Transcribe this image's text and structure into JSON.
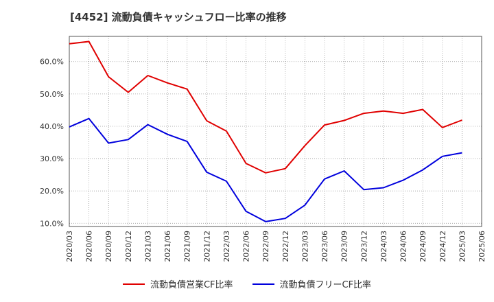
{
  "title": "[4452]  流動負債キャッシュフロー比率の推移",
  "colors": {
    "series1": "#e00000",
    "series2": "#0000dd"
  },
  "chart_data": {
    "type": "line",
    "categories": [
      "2020/03",
      "2020/06",
      "2020/09",
      "2020/12",
      "2021/03",
      "2021/06",
      "2021/09",
      "2021/12",
      "2022/03",
      "2022/06",
      "2022/09",
      "2022/12",
      "2023/03",
      "2023/06",
      "2023/09",
      "2023/12",
      "2024/03",
      "2024/06",
      "2024/09",
      "2024/12",
      "2025/03",
      "2025/06"
    ],
    "yticks": [
      "10.0%",
      "20.0%",
      "30.0%",
      "40.0%",
      "50.0%",
      "60.0%"
    ],
    "ylim": [
      9,
      67.8
    ],
    "grid": true,
    "legend_position": "bottom",
    "series": [
      {
        "name": "流動負債営業CF比率",
        "values": [
          65.5,
          66.2,
          55.3,
          50.5,
          55.7,
          53.4,
          51.5,
          41.7,
          38.5,
          28.5,
          25.6,
          26.9,
          34.0,
          40.4,
          41.8,
          44.0,
          44.7,
          44.0,
          45.2,
          39.6,
          41.9,
          null
        ]
      },
      {
        "name": "流動負債フリーCF比率",
        "values": [
          39.8,
          42.4,
          34.8,
          35.9,
          40.5,
          37.5,
          35.3,
          25.8,
          23.0,
          13.7,
          10.5,
          11.5,
          15.6,
          23.7,
          26.2,
          20.4,
          21.0,
          23.3,
          26.5,
          30.7,
          31.8,
          null
        ]
      }
    ]
  }
}
